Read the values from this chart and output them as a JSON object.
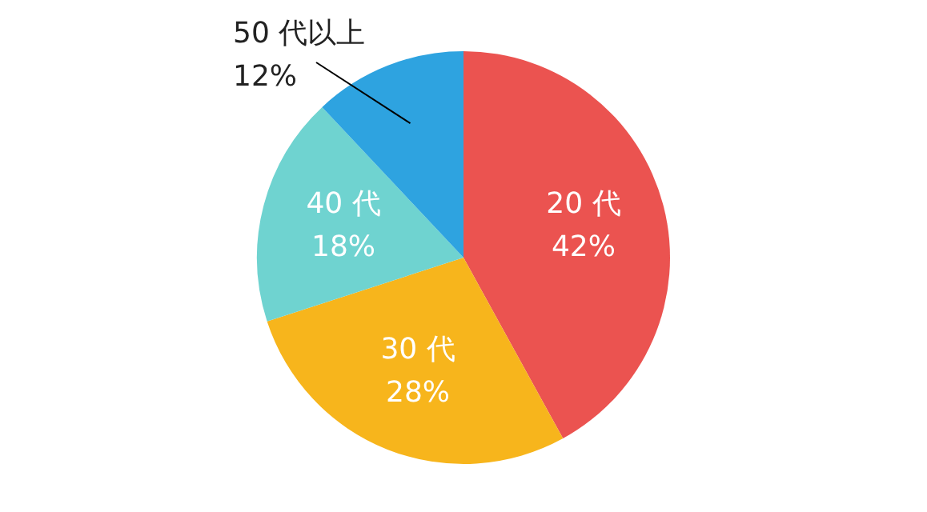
{
  "chart_data": {
    "type": "pie",
    "categories": [
      "20 代",
      "30 代",
      "40 代",
      "50 代以上"
    ],
    "values": [
      42,
      28,
      18,
      12
    ],
    "value_labels": [
      "42%",
      "28%",
      "18%",
      "12%"
    ],
    "colors": [
      "#eb5350",
      "#f7b51c",
      "#6fd3d0",
      "#2ea3e0"
    ],
    "legend": false
  }
}
